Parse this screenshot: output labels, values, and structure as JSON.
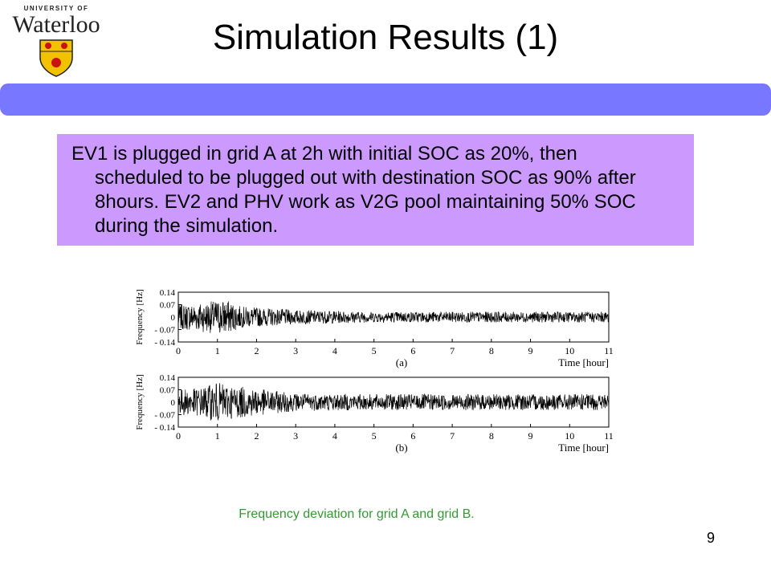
{
  "logo": {
    "university_label": "UNIVERSITY OF",
    "name": "Waterloo",
    "icon": "crest-icon",
    "colors": {
      "shield": "#f2c200",
      "lion": "#cc1111"
    }
  },
  "slide": {
    "title": "Simulation Results (1)",
    "bar_color": "#7777ff",
    "body_text": "EV1 is plugged in grid A at 2h with initial SOC as 20%, then scheduled to be plugged out with destination SOC as 90% after 8hours. EV2 and PHV work as V2G pool maintaining 50% SOC during the simulation.",
    "body_bg": "#cc99ff",
    "caption": "Frequency deviation for grid A and grid B.",
    "caption_color": "#339933",
    "page_number": "9"
  },
  "chart_data": [
    {
      "type": "line",
      "panel_label": "(a)",
      "xlabel": "Time [hour]",
      "ylabel": "Frequency [Hz]",
      "xlim": [
        0,
        11
      ],
      "ylim": [
        -0.14,
        0.14
      ],
      "x_ticks": [
        "0",
        "1",
        "2",
        "3",
        "4",
        "5",
        "6",
        "7",
        "8",
        "9",
        "10",
        "11"
      ],
      "y_ticks": [
        "0.14",
        "0.07",
        "0",
        "- 0.07",
        "- 0.14"
      ],
      "series": [
        {
          "amplitude_profile": [
            {
              "x": 0,
              "amp": 0.07
            },
            {
              "x": 0.5,
              "amp": 0.08
            },
            {
              "x": 1.2,
              "amp": 0.1
            },
            {
              "x": 1.6,
              "amp": 0.06
            },
            {
              "x": 3,
              "amp": 0.04
            },
            {
              "x": 5,
              "amp": 0.03
            },
            {
              "x": 8,
              "amp": 0.03
            },
            {
              "x": 11,
              "amp": 0.03
            }
          ]
        }
      ]
    },
    {
      "type": "line",
      "panel_label": "(b)",
      "xlabel": "Time [hour]",
      "ylabel": "Frequency [Hz]",
      "xlim": [
        0,
        11
      ],
      "ylim": [
        -0.14,
        0.14
      ],
      "x_ticks": [
        "0",
        "1",
        "2",
        "3",
        "4",
        "5",
        "6",
        "7",
        "8",
        "9",
        "10",
        "11"
      ],
      "y_ticks": [
        "0.14",
        "0.07",
        "0",
        "- 0.07",
        "- 0.14"
      ],
      "series": [
        {
          "amplitude_profile": [
            {
              "x": 0,
              "amp": 0.07
            },
            {
              "x": 0.5,
              "amp": 0.08
            },
            {
              "x": 1.0,
              "amp": 0.11
            },
            {
              "x": 1.5,
              "amp": 0.09
            },
            {
              "x": 3,
              "amp": 0.05
            },
            {
              "x": 5,
              "amp": 0.045
            },
            {
              "x": 8,
              "amp": 0.045
            },
            {
              "x": 11,
              "amp": 0.045
            }
          ]
        }
      ]
    }
  ]
}
